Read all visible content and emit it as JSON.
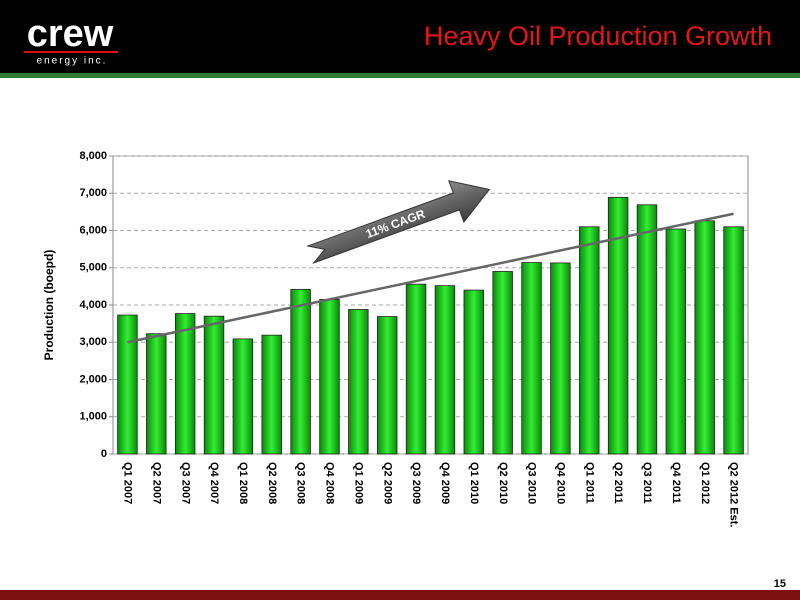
{
  "logo": {
    "name": "crew",
    "tagline": "energy inc."
  },
  "page_number": "15",
  "chart_data": {
    "type": "bar",
    "title": "Heavy Oil Production Growth",
    "y_label": "Production (boepd)",
    "annotation": "11% CAGR",
    "categories": [
      "Q1 2007",
      "Q2 2007",
      "Q3 2007",
      "Q4 2007",
      "Q1 2008",
      "Q2 2008",
      "Q3 2008",
      "Q4 2008",
      "Q1 2009",
      "Q2 2009",
      "Q3 2009",
      "Q4 2009",
      "Q1 2010",
      "Q2 2010",
      "Q3 2010",
      "Q4 2010",
      "Q1 2011",
      "Q2 2011",
      "Q3 2011",
      "Q4 2011",
      "Q1 2012",
      "Q2 2012 Est."
    ],
    "values": [
      3730,
      3230,
      3770,
      3700,
      3090,
      3190,
      4420,
      4150,
      3880,
      3690,
      4560,
      4520,
      4400,
      4900,
      5140,
      5130,
      6100,
      6890,
      6690,
      6040,
      6260,
      6100
    ],
    "color": "#22dd22",
    "trendline": {
      "start": 3000,
      "end": 6450,
      "color": "#666666"
    },
    "ylim": [
      0,
      8000
    ],
    "yticks": [
      0,
      {
        "value": 1000,
        "label": "1,000"
      },
      {
        "value": 2000,
        "label": "2,000"
      },
      {
        "value": 3000,
        "label": "3,000"
      },
      {
        "value": 4000,
        "label": "4,000"
      },
      {
        "value": 5000,
        "label": "5,000"
      },
      {
        "value": 6000,
        "label": "6,000"
      },
      {
        "value": 7000,
        "label": "7,000"
      },
      {
        "value": 8000,
        "label": "8,000"
      }
    ],
    "grid": true
  }
}
